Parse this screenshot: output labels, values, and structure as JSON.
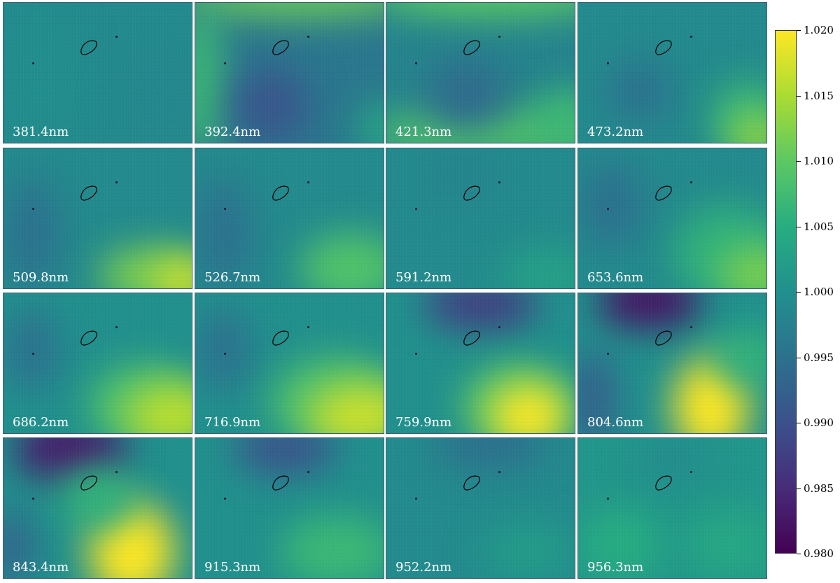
{
  "chart_data": {
    "type": "heatmap",
    "title": "",
    "panels": [
      {
        "label": "381.4nm"
      },
      {
        "label": "392.4nm"
      },
      {
        "label": "421.3nm"
      },
      {
        "label": "473.2nm"
      },
      {
        "label": "509.8nm"
      },
      {
        "label": "526.7nm"
      },
      {
        "label": "591.2nm"
      },
      {
        "label": "653.6nm"
      },
      {
        "label": "686.2nm"
      },
      {
        "label": "716.9nm"
      },
      {
        "label": "759.9nm"
      },
      {
        "label": "804.6nm"
      },
      {
        "label": "843.4nm"
      },
      {
        "label": "915.3nm"
      },
      {
        "label": "952.2nm"
      },
      {
        "label": "956.3nm"
      }
    ],
    "colorbar": {
      "colormap": "viridis",
      "range": [
        0.98,
        1.02
      ],
      "ticks": [
        "0.980",
        "0.985",
        "0.990",
        "0.995",
        "1.000",
        "1.005",
        "1.010",
        "1.015",
        "1.020"
      ]
    }
  },
  "colors": {
    "viridis_low": "#440154",
    "viridis_mid": "#21918c",
    "viridis_high": "#fde725",
    "label_text": "#ffffff"
  }
}
